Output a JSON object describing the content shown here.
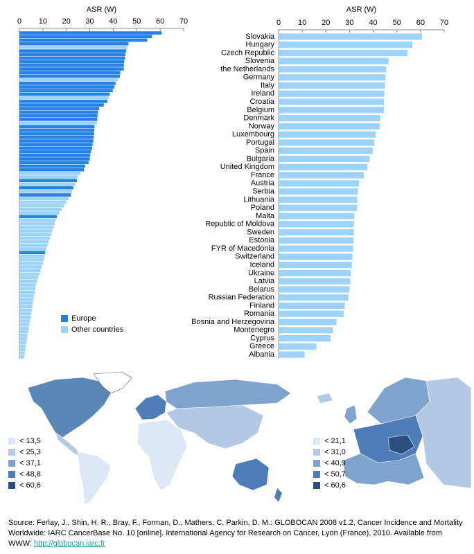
{
  "chart_data": [
    {
      "type": "bar",
      "orientation": "horizontal",
      "x_label": "ASR (W)",
      "xlim": [
        0,
        70
      ],
      "xticks": [
        0,
        10,
        20,
        30,
        40,
        50,
        60,
        70
      ],
      "categories": [
        null,
        null,
        null,
        null,
        null,
        null,
        null,
        null,
        null,
        null,
        null,
        null,
        null,
        null,
        null,
        null,
        null,
        null,
        null,
        null,
        null,
        null,
        null,
        null,
        null,
        null,
        null,
        null,
        null,
        null,
        null,
        null,
        null,
        null,
        null,
        null,
        null,
        null,
        null,
        null,
        null,
        null,
        null,
        null,
        null,
        null,
        null,
        null,
        null,
        null,
        null,
        null,
        null,
        null,
        null,
        null,
        null,
        null,
        null,
        null,
        null,
        null,
        null,
        null,
        null,
        null,
        null,
        null,
        null,
        null,
        null,
        null,
        null,
        null,
        null,
        null,
        null,
        null,
        null,
        null,
        null,
        null,
        null,
        null,
        null,
        null,
        null,
        null,
        null,
        null,
        null
      ],
      "series": [
        {
          "name": "Europe",
          "color": "#2680e6",
          "values": [
            60.6,
            56.5,
            54.5,
            46.5,
            null,
            45.5,
            45.2,
            45.0,
            44.7,
            44.5,
            44.5,
            43.0,
            42.8,
            null,
            41.0,
            40.5,
            39.8,
            38.5,
            null,
            37.5,
            36.0,
            34.0,
            33.5,
            33.3,
            33.2,
            null,
            32.0,
            31.9,
            31.8,
            31.7,
            31.5,
            31.2,
            31.0,
            30.5,
            30.2,
            30.0,
            29.5,
            28.0,
            27.5,
            null,
            null,
            24.5,
            null,
            23.0,
            null,
            22.0,
            null,
            null,
            null,
            null,
            null,
            16.0,
            null,
            null,
            null,
            null,
            null,
            null,
            null,
            null,
            null,
            11.0,
            null,
            null,
            null,
            null,
            null,
            null,
            null,
            null,
            null,
            null,
            null,
            null,
            null,
            null,
            null,
            null,
            null,
            null,
            null,
            null,
            null,
            null,
            null,
            null,
            null,
            null,
            null,
            null,
            null
          ]
        },
        {
          "name": "Other countries",
          "color": "#9dd3fa",
          "values": [
            null,
            null,
            null,
            null,
            46.0,
            null,
            null,
            null,
            null,
            null,
            null,
            null,
            null,
            42.0,
            null,
            null,
            null,
            null,
            38.0,
            null,
            null,
            null,
            null,
            null,
            null,
            33.0,
            null,
            null,
            null,
            null,
            null,
            null,
            null,
            null,
            null,
            null,
            null,
            null,
            null,
            26.0,
            25.0,
            null,
            24.0,
            null,
            22.5,
            null,
            21.0,
            20.0,
            19.0,
            18.0,
            17.0,
            null,
            15.5,
            15.0,
            14.5,
            14.0,
            13.5,
            13.0,
            12.5,
            12.0,
            11.5,
            null,
            10.8,
            10.5,
            10.0,
            9.5,
            9.0,
            8.5,
            8.0,
            7.5,
            7.0,
            6.8,
            6.5,
            6.2,
            6.0,
            5.8,
            5.5,
            5.3,
            5.0,
            4.8,
            4.5,
            4.3,
            4.0,
            3.8,
            3.5,
            3.3,
            3.0,
            2.8,
            2.5,
            2.3,
            2.0
          ]
        }
      ]
    },
    {
      "type": "bar",
      "orientation": "horizontal",
      "x_label": "ASR (W)",
      "xlim": [
        0,
        70
      ],
      "xticks": [
        0,
        10,
        20,
        30,
        40,
        50,
        60,
        70
      ],
      "categories": [
        "Slovakia",
        "Hungary",
        "Czech Republic",
        "Slovenia",
        "the Netherlands",
        "Germany",
        "Italy",
        "Ireland",
        "Croatia",
        "Belgium",
        "Denmark",
        "Norway",
        "Luxembourg",
        "Portugal",
        "Spain",
        "Bulgaria",
        "United Kingdom",
        "France",
        "Austria",
        "Serbia",
        "Lithuania",
        "Poland",
        "Malta",
        "Republic of Moldova",
        "Sweden",
        "Estonia",
        "FYR of Macedonia",
        "Switzerland",
        "Iceland",
        "Ukraine",
        "Latvia",
        "Belarus",
        "Russian Federation",
        "Finland",
        "Romania",
        "Bosnia and Herzegovina",
        "Montenegro",
        "Cyprus",
        "Greece",
        "Albania"
      ],
      "series": [
        {
          "color": "#9dd3fa",
          "values": [
            60.6,
            56.5,
            54.5,
            46.5,
            45.5,
            45.2,
            45.0,
            44.7,
            44.5,
            44.5,
            43.0,
            42.8,
            41.0,
            40.5,
            39.8,
            38.5,
            37.5,
            36.0,
            34.0,
            33.5,
            33.3,
            33.2,
            32.0,
            31.9,
            31.8,
            31.7,
            31.5,
            31.2,
            31.0,
            30.5,
            30.2,
            30.0,
            29.5,
            28.0,
            27.5,
            24.5,
            23.0,
            22.0,
            16.0,
            11.0
          ]
        }
      ]
    }
  ],
  "maps": [
    {
      "legend": [
        {
          "label": "< 13,5",
          "color": "#dce8f5"
        },
        {
          "label": "< 25,3",
          "color": "#b3c9e3"
        },
        {
          "label": "< 37,1",
          "color": "#7ea3cf"
        },
        {
          "label": "< 48,8",
          "color": "#4d7db6"
        },
        {
          "label": "< 60,6",
          "color": "#2a4f7e"
        }
      ]
    },
    {
      "legend": [
        {
          "label": "< 21,1",
          "color": "#dce8f5"
        },
        {
          "label": "< 31,0",
          "color": "#b3c9e3"
        },
        {
          "label": "< 40,9",
          "color": "#7ea3cf"
        },
        {
          "label": "< 50,7",
          "color": "#4d7db6"
        },
        {
          "label": "< 60,6",
          "color": "#2a4f7e"
        }
      ]
    }
  ],
  "source": {
    "text": "Source: Ferlay, J., Shin, H. R., Bray, F., Forman, D., Mathers, C, Parkin, D. M.: GLOBOCAN 2008 v1.2, Cancer Incidence and Mortality Worldwide: IARC CancerBase No. 10 [online]. International Agency for Research on Cancer, Lyon (France), 2010. Available from WWW:",
    "link": "http://globocan.iarc.fr"
  }
}
